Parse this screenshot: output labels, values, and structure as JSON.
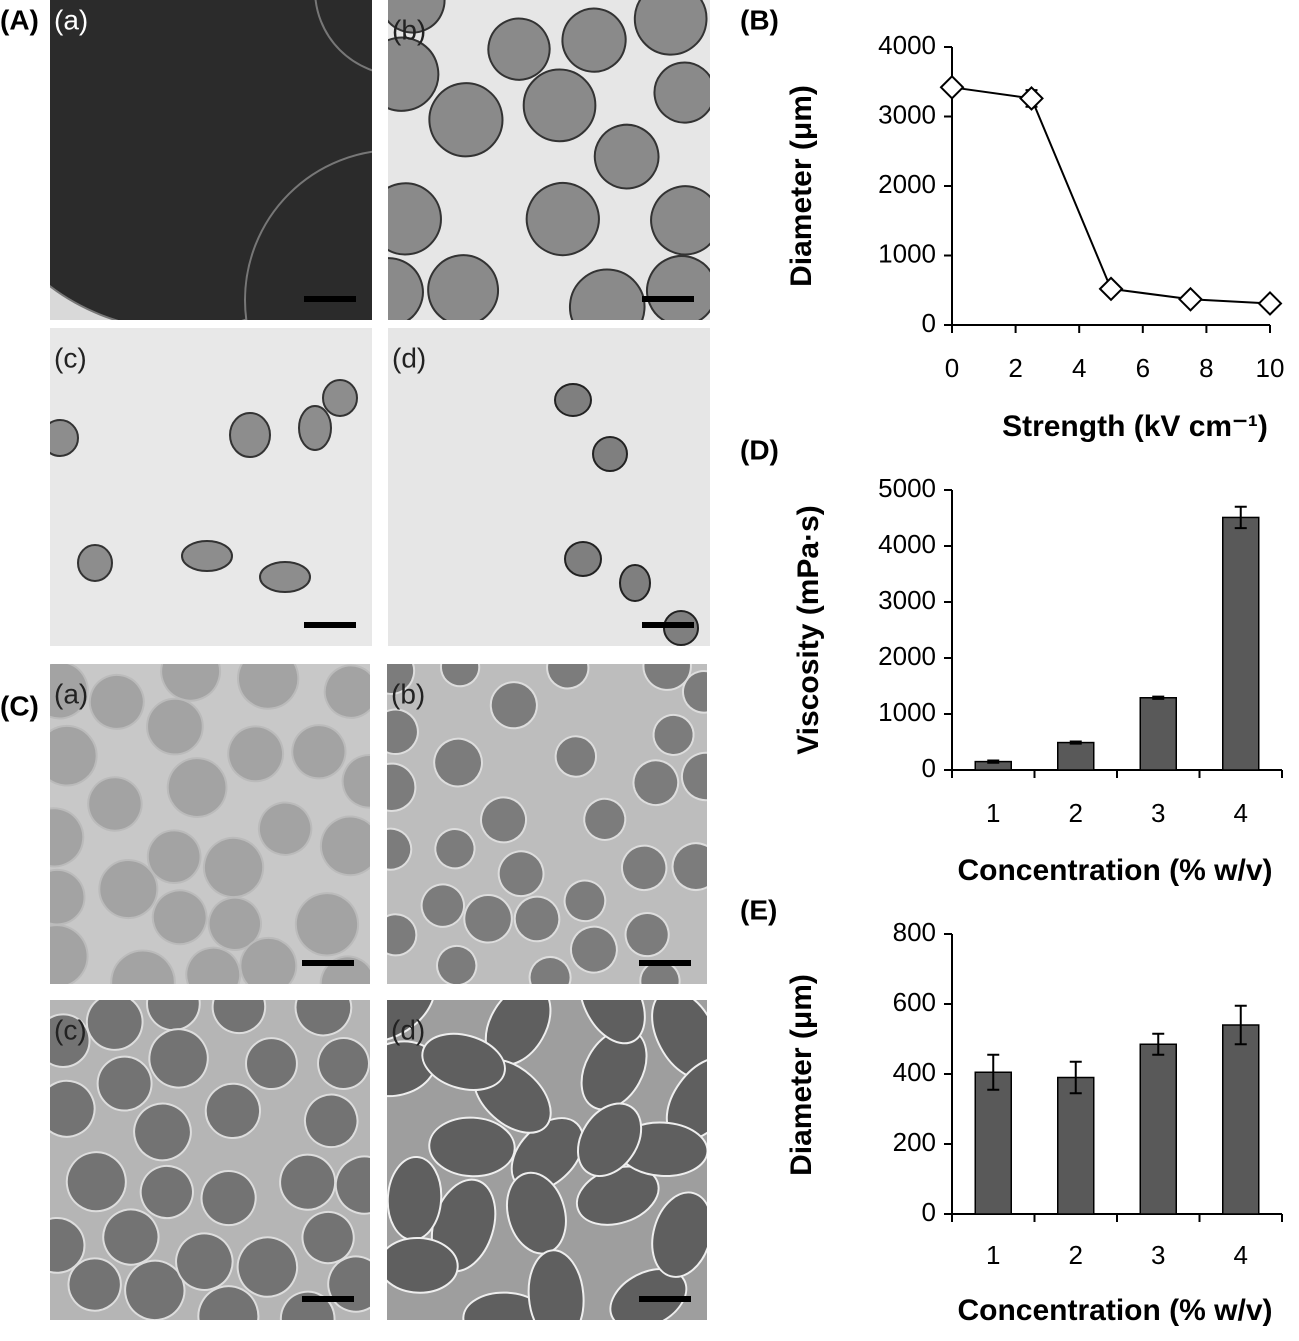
{
  "panels": [
    {
      "label": "(A)",
      "images": [
        "(a)",
        "(b)",
        "(c)",
        "(d)"
      ]
    },
    {
      "label": "(C)",
      "images": [
        "(a)",
        "(b)",
        "(c)",
        "(d)"
      ]
    }
  ],
  "chart_data": [
    {
      "type": "line",
      "label": "(B)",
      "x": [
        0,
        2.5,
        5,
        7.5,
        10
      ],
      "values": [
        3420,
        3260,
        520,
        370,
        310
      ],
      "errors": [
        30,
        120,
        50,
        30,
        20
      ],
      "color": "#000000",
      "xlim": [
        0,
        10
      ],
      "xticks": [
        0,
        2,
        4,
        6,
        8,
        10
      ],
      "ylim": [
        0,
        4000
      ],
      "yticks": [
        0,
        1000,
        2000,
        3000,
        4000
      ],
      "xlabel": "Strength (kV cm⁻¹)",
      "ylabel": "Diameter (μm)"
    },
    {
      "type": "bar",
      "label": "(D)",
      "categories": [
        "1",
        "2",
        "3",
        "4"
      ],
      "values": [
        150,
        490,
        1290,
        4510
      ],
      "errors": [
        20,
        20,
        20,
        190
      ],
      "color": "#595959",
      "ylim": [
        0,
        5000
      ],
      "yticks": [
        0,
        1000,
        2000,
        3000,
        4000,
        5000
      ],
      "xlabel": "Concentration (% w/v)",
      "ylabel": "Viscosity (mPa·s)"
    },
    {
      "type": "bar",
      "label": "(E)",
      "categories": [
        "1",
        "2",
        "3",
        "4"
      ],
      "values": [
        405,
        390,
        485,
        540
      ],
      "errors": [
        50,
        45,
        30,
        55
      ],
      "color": "#595959",
      "ylim": [
        0,
        800
      ],
      "yticks": [
        0,
        200,
        400,
        600,
        800
      ],
      "xlabel": "Concentration (% w/v)",
      "ylabel": "Diameter (μm)"
    }
  ]
}
